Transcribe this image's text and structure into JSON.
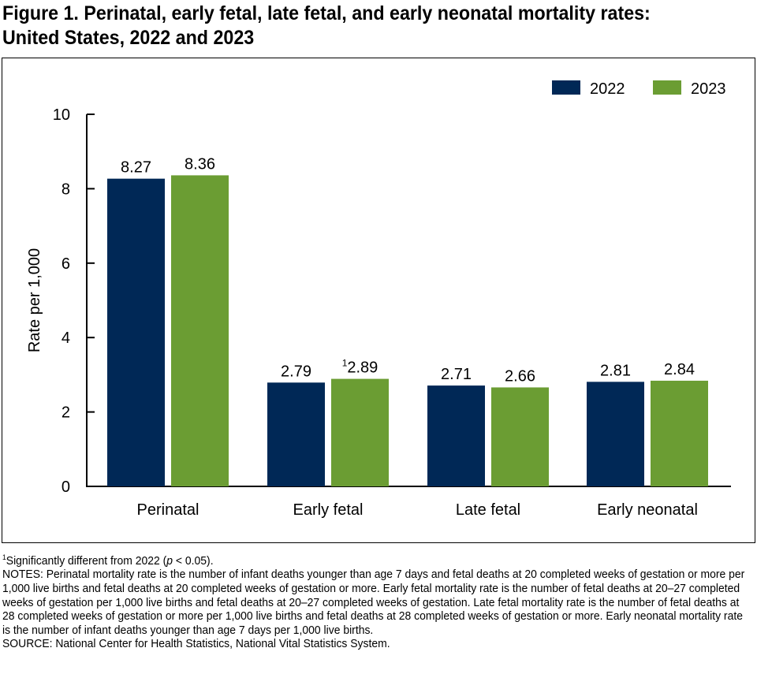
{
  "title": "Figure 1. Perinatal, early fetal, late fetal, and early neonatal mortality rates: United States, 2022 and 2023",
  "chart_data": {
    "type": "bar",
    "categories": [
      "Perinatal",
      "Early fetal",
      "Late fetal",
      "Early neonatal"
    ],
    "series": [
      {
        "name": "2022",
        "color": "#002856",
        "values": [
          8.27,
          2.79,
          2.71,
          2.81
        ],
        "labels": [
          "8.27",
          "2.79",
          "2.71",
          "2.81"
        ]
      },
      {
        "name": "2023",
        "color": "#6b9d33",
        "values": [
          8.36,
          2.89,
          2.66,
          2.84
        ],
        "labels": [
          "8.36",
          "2.89",
          "2.66",
          "2.84"
        ],
        "footnotes": [
          "",
          "1",
          "",
          ""
        ]
      }
    ],
    "ylabel": "Rate per 1,000",
    "ylim": [
      0,
      10
    ],
    "yticks": [
      "0",
      "2",
      "4",
      "6",
      "8",
      "10"
    ],
    "grid": false,
    "legend": "top-right"
  },
  "footnote": {
    "mark": "1",
    "text_before": "Significantly different from 2022 (",
    "p": "p",
    "text_after": " < 0.05)."
  },
  "notes": "NOTES: Perinatal mortality rate is the number of infant deaths younger than age 7 days and fetal deaths at 20 completed weeks of gestation or more per 1,000 live births and fetal deaths at 20 completed weeks of gestation or more. Early fetal mortality rate is the number of fetal deaths at 20–27 completed weeks of gestation per 1,000 live births and fetal deaths at 20–27 completed weeks of gestation. Late fetal mortality rate is the number of fetal deaths at 28 completed weeks of gestation or more per 1,000 live births and fetal deaths at 28 completed weeks of gestation or more. Early neonatal mortality rate is the number of infant deaths younger than age 7 days per 1,000 live births.",
  "source": "SOURCE: National Center for Health Statistics, National Vital Statistics System."
}
